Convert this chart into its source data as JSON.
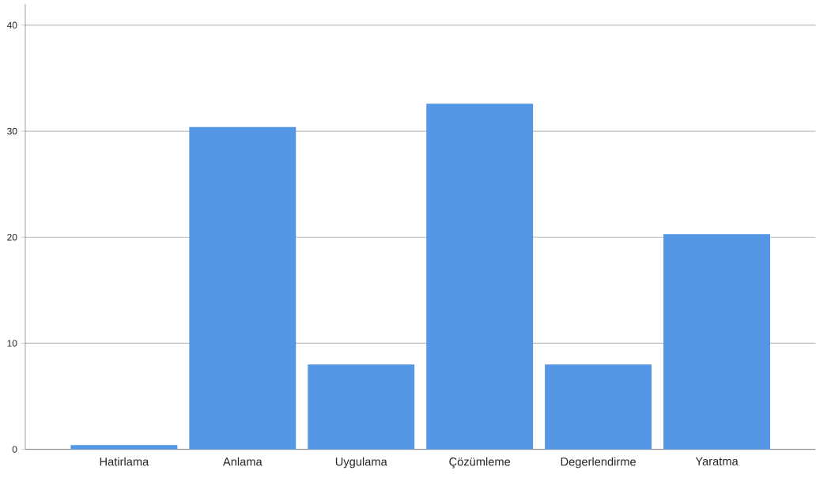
{
  "chart_data": {
    "type": "bar",
    "categories": [
      "Hatirlama",
      "Anlama",
      "Uygulama",
      "Çözümleme",
      "Degerlendirme",
      "Yaratma"
    ],
    "values": [
      0.4,
      30.4,
      8.0,
      32.6,
      8.0,
      20.3
    ],
    "color": "#5596e5",
    "ylim": [
      0,
      42
    ],
    "yticks": [
      0,
      10,
      20,
      30,
      40
    ],
    "grid": "y"
  }
}
